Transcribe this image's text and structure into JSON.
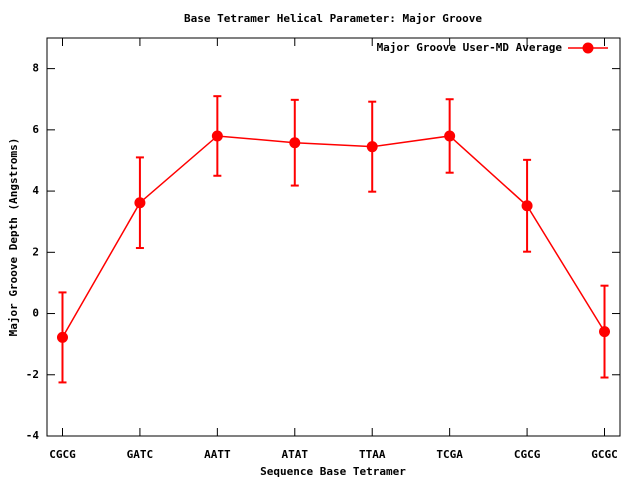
{
  "chart_data": {
    "type": "line",
    "title": "Base Tetramer Helical Parameter: Major Groove",
    "x_label": "Sequence Base Tetramer",
    "y_label": "Major Groove Depth (Angstroms)",
    "categories": [
      "CGCG",
      "GATC",
      "AATT",
      "ATAT",
      "TTAA",
      "TCGA",
      "CGCG",
      "GCGC"
    ],
    "series": [
      {
        "name": "Major Groove User-MD Average",
        "color": "#ff0000",
        "values": [
          -0.78,
          3.62,
          5.8,
          5.58,
          5.45,
          5.8,
          3.52,
          -0.59
        ],
        "errors": [
          1.47,
          1.48,
          1.3,
          1.4,
          1.47,
          1.2,
          1.5,
          1.5
        ]
      }
    ],
    "ylim": [
      -4,
      9
    ],
    "yticks": [
      -4,
      -2,
      0,
      2,
      4,
      6,
      8
    ],
    "legend": "top-right"
  }
}
